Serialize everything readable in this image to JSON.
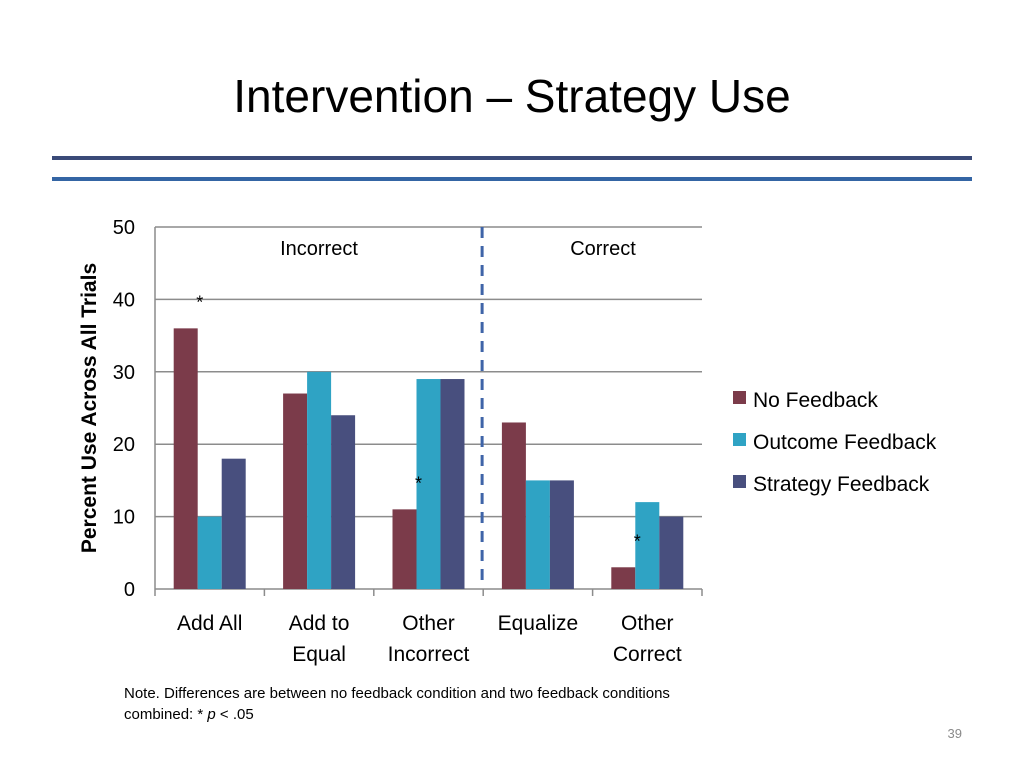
{
  "slide": {
    "title": "Intervention – Strategy Use",
    "note_line1": "Note. Differences are between no feedback condition and two feedback conditions",
    "note_prefix": "combined: * ",
    "note_p": "p",
    "note_suffix": " < .05",
    "page_number": "39"
  },
  "chart_data": {
    "type": "bar",
    "ylabel": "Percent Use Across All Trials",
    "xlabel": "",
    "ylim": [
      0,
      50
    ],
    "yticks": [
      0,
      10,
      20,
      30,
      40,
      50
    ],
    "grid": true,
    "categories": [
      [
        "Add All"
      ],
      [
        "Add to",
        "Equal"
      ],
      [
        "Other",
        "Incorrect"
      ],
      [
        "Equalize"
      ],
      [
        "Other",
        "Correct"
      ]
    ],
    "series": [
      {
        "name": "No Feedback",
        "color": "#7b3b4a",
        "values": [
          36,
          27,
          11,
          23,
          3
        ]
      },
      {
        "name": "Outcome Feedback",
        "color": "#2fa3c4",
        "values": [
          10,
          30,
          29,
          15,
          12
        ]
      },
      {
        "name": "Strategy Feedback",
        "color": "#484f7e",
        "values": [
          18,
          24,
          29,
          15,
          10
        ]
      }
    ],
    "section_labels": [
      "Incorrect",
      "Correct"
    ],
    "section_divider_after_category": 3,
    "section_divider_color": "#3f64a8",
    "significance_markers": [
      {
        "category": 0,
        "text": "*"
      },
      {
        "category": 2,
        "text": "*"
      },
      {
        "category": 4,
        "text": "*"
      }
    ],
    "legend_position": "right"
  }
}
